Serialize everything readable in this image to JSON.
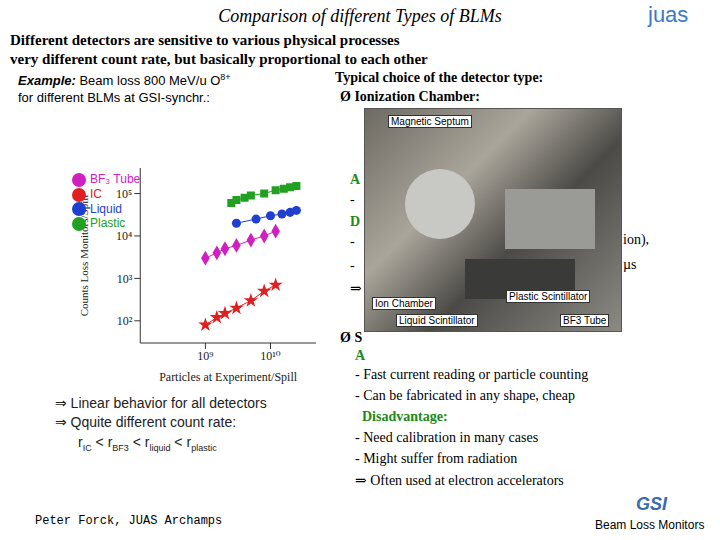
{
  "header": {
    "title": "Comparison of different Types of BLMs",
    "logo": "juas"
  },
  "intro": [
    "Different detectors are sensitive to various physical processes",
    "very different count rate, but basically proportional to each other"
  ],
  "example": {
    "label": "Example:",
    "text": "Beam loss 800 MeV/u O",
    "superscript": "8+",
    "line2": "for different BLMs at GSI-synchr.:"
  },
  "chart_data": {
    "type": "scatter",
    "x_label": "Particles at Experiment/Spill",
    "y_label": "Counts Loss Monitors/Spill",
    "log": true,
    "grid": false,
    "legend": "top-left",
    "xlim": [
      100000000,
      50000000000
    ],
    "ylim": [
      30,
      400000
    ],
    "xticks": [
      {
        "value": 1000000000,
        "label": "10⁹"
      },
      {
        "value": 10000000000,
        "label": "10¹⁰"
      }
    ],
    "yticks": [
      {
        "value": 100,
        "label": "10²"
      },
      {
        "value": 1000,
        "label": "10³"
      },
      {
        "value": 10000,
        "label": "10⁴"
      },
      {
        "value": 100000,
        "label": "10⁵"
      }
    ],
    "series": [
      {
        "name": "Plastic",
        "color": "#22a022",
        "marker": "square",
        "line_style": "solid",
        "x": [
          2500000000,
          3000000000,
          4000000000,
          5000000000,
          8000000000,
          12000000000,
          16000000000,
          20000000000,
          25000000000
        ],
        "values": [
          60000,
          70000,
          80000,
          90000,
          100000,
          120000,
          130000,
          140000,
          150000
        ]
      },
      {
        "name": "Liquid",
        "color": "#1f3fd0",
        "marker": "circle",
        "line_style": "solid",
        "x": [
          3000000000,
          6000000000,
          10000000000,
          15000000000,
          20000000000,
          25000000000
        ],
        "values": [
          20000,
          25000,
          30000,
          33000,
          36000,
          40000
        ]
      },
      {
        "name": "BF₃ Tube",
        "color": "#d020c0",
        "marker": "diamond",
        "line_style": "solid",
        "x": [
          1000000000,
          1500000000,
          2000000000,
          3000000000,
          5000000000,
          8000000000,
          12000000000
        ],
        "values": [
          3000,
          4000,
          5000,
          6000,
          8000,
          10000,
          13000
        ]
      },
      {
        "name": "IC",
        "color": "#e02020",
        "marker": "star",
        "line_style": "solid",
        "x": [
          1000000000,
          1500000000,
          2000000000,
          3000000000,
          5000000000,
          8000000000,
          12000000000
        ],
        "values": [
          80,
          120,
          150,
          200,
          300,
          500,
          700
        ]
      }
    ]
  },
  "conclusions": [
    "⇒ Linear behavior for all detectors",
    "⇒ Qquite different count rate:"
  ],
  "relation": {
    "symbol": "r",
    "subscripts": [
      "IC",
      "BF3",
      "liquid",
      "plastic"
    ],
    "separator": "<"
  },
  "right": {
    "heading": "Typical choice of the detector type:",
    "ion_chamber": "Ø Ionization Chamber:",
    "left_fragments": [
      "A",
      "-",
      "D",
      "-",
      "-",
      "⇒"
    ],
    "right_fragments": [
      "ion),",
      "µs"
    ],
    "scintillator_fragment": "Ø S",
    "advantage_fragment": "A"
  },
  "photo_labels": [
    "Magnetic Septum",
    "Ion Chamber",
    "Plastic Scintillator",
    "Liquid Scintillator",
    "BF3 Tube"
  ],
  "scintillator": {
    "advantages": [
      "- Fast current reading or particle counting",
      "- Can be fabricated in any shape, cheap"
    ],
    "disadvantage_heading": "Disadvantage:",
    "disadvantages": [
      "- Need calibration in many cases",
      "- Might suffer from radiation"
    ],
    "conclusion": "⇒ Often used at electron accelerators"
  },
  "footer": {
    "author": "Peter Forck, JUAS Archamps",
    "logo": "GSI",
    "topic": "Beam Loss Monitors"
  }
}
